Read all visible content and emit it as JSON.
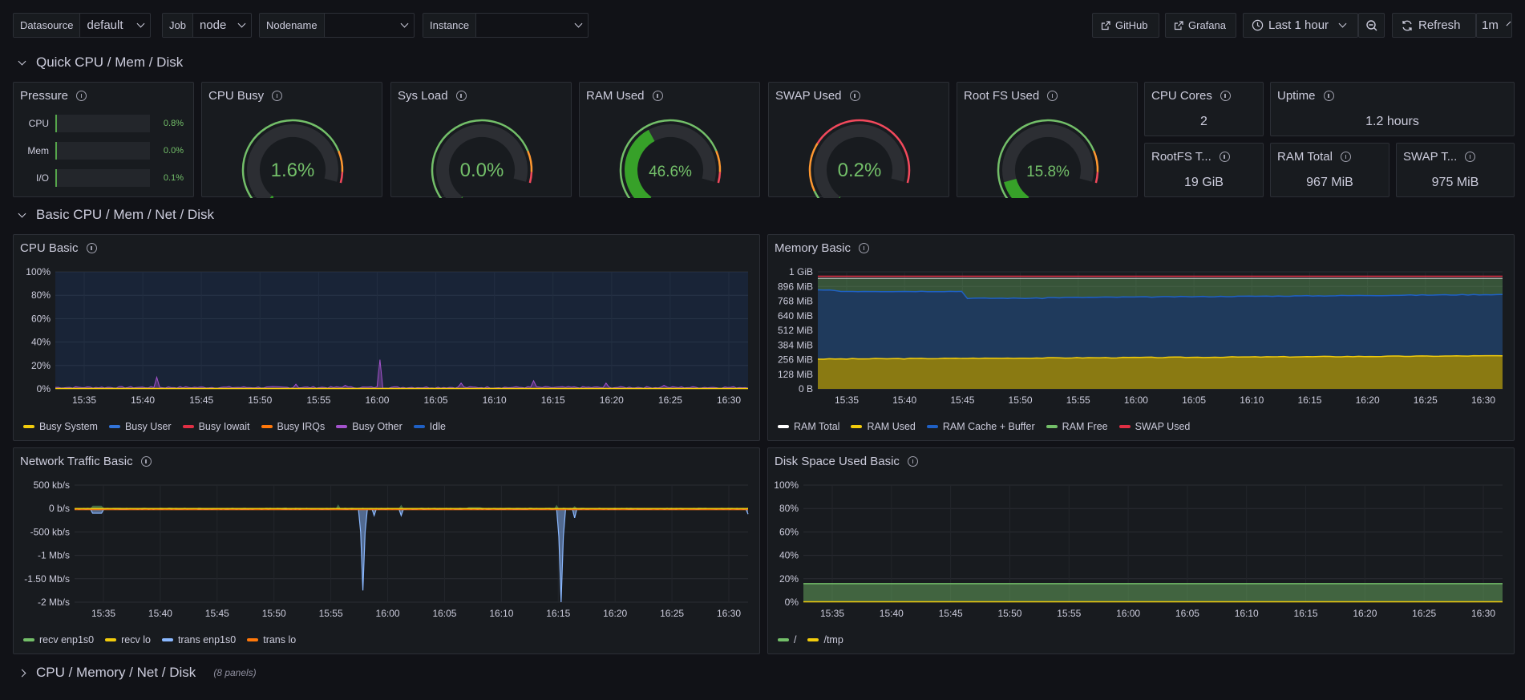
{
  "toolbar": {
    "vars": [
      {
        "label": "Datasource",
        "value": "default"
      },
      {
        "label": "Job",
        "value": "node"
      },
      {
        "label": "Nodename",
        "value": ""
      },
      {
        "label": "Instance",
        "value": ""
      }
    ],
    "github_label": "GitHub",
    "grafana_label": "Grafana",
    "time_range": "Last 1 hour",
    "refresh_label": "Refresh",
    "refresh_interval": "1m"
  },
  "rows": {
    "quick": "Quick CPU / Mem / Disk",
    "basic": "Basic CPU / Mem / Net / Disk",
    "cpu_mem_net_disk": "CPU / Memory / Net / Disk",
    "cpu_mem_net_disk_count": "(8 panels)"
  },
  "pressure": {
    "title": "Pressure",
    "items": [
      {
        "label": "CPU",
        "value": "0.8%",
        "fraction": 0.008
      },
      {
        "label": "Mem",
        "value": "0.0%",
        "fraction": 0.0
      },
      {
        "label": "I/O",
        "value": "0.1%",
        "fraction": 0.001
      }
    ]
  },
  "gauges": [
    {
      "title": "CPU Busy",
      "value": "1.6%",
      "pct": 1.6
    },
    {
      "title": "Sys Load",
      "value": "0.0%",
      "pct": 0.0
    },
    {
      "title": "RAM Used",
      "value": "46.6%",
      "pct": 46.6
    },
    {
      "title": "SWAP Used",
      "value": "0.2%",
      "pct": 0.2,
      "thresholds": "swap"
    },
    {
      "title": "Root FS Used",
      "value": "15.8%",
      "pct": 15.8
    }
  ],
  "stats": {
    "cpu_cores": {
      "title": "CPU Cores",
      "value": "2"
    },
    "uptime": {
      "title": "Uptime",
      "value": "1.2 hours"
    },
    "rootfs_total": {
      "title": "RootFS T...",
      "value": "19 GiB"
    },
    "ram_total": {
      "title": "RAM Total",
      "value": "967 MiB"
    },
    "swap_total": {
      "title": "SWAP T...",
      "value": "975 MiB"
    }
  },
  "time_ticks": [
    "15:35",
    "15:40",
    "15:45",
    "15:50",
    "15:55",
    "16:00",
    "16:05",
    "16:10",
    "16:15",
    "16:20",
    "16:25",
    "16:30"
  ],
  "cpu_basic": {
    "title": "CPU Basic",
    "y_ticks": [
      "100%",
      "80%",
      "60%",
      "40%",
      "20%",
      "0%"
    ],
    "legend": [
      {
        "name": "Busy System",
        "color": "#f2cc0c"
      },
      {
        "name": "Busy User",
        "color": "#3274d9"
      },
      {
        "name": "Busy Iowait",
        "color": "#e02f44"
      },
      {
        "name": "Busy IRQs",
        "color": "#ff780a"
      },
      {
        "name": "Busy Other",
        "color": "#a352cc"
      },
      {
        "name": "Idle",
        "color": "#1f60c4"
      }
    ]
  },
  "memory_basic": {
    "title": "Memory Basic",
    "y_ticks": [
      "1 GiB",
      "896 MiB",
      "768 MiB",
      "640 MiB",
      "512 MiB",
      "384 MiB",
      "256 MiB",
      "128 MiB",
      "0 B"
    ],
    "legend": [
      {
        "name": "RAM Total",
        "color": "#ffffff"
      },
      {
        "name": "RAM Used",
        "color": "#f2cc0c"
      },
      {
        "name": "RAM Cache + Buffer",
        "color": "#1f60c4"
      },
      {
        "name": "RAM Free",
        "color": "#73bf69"
      },
      {
        "name": "SWAP Used",
        "color": "#e02f44"
      }
    ]
  },
  "network_basic": {
    "title": "Network Traffic Basic",
    "y_ticks": [
      "500 kb/s",
      "0 b/s",
      "-500 kb/s",
      "-1 Mb/s",
      "-1.50 Mb/s",
      "-2 Mb/s"
    ],
    "legend": [
      {
        "name": "recv enp1s0",
        "color": "#73bf69"
      },
      {
        "name": "recv lo",
        "color": "#f2cc0c"
      },
      {
        "name": "trans enp1s0",
        "color": "#8ab8ff"
      },
      {
        "name": "trans lo",
        "color": "#ff780a"
      }
    ]
  },
  "disk_basic": {
    "title": "Disk Space Used Basic",
    "y_ticks": [
      "100%",
      "80%",
      "60%",
      "40%",
      "20%",
      "0%"
    ],
    "legend": [
      {
        "name": "/",
        "color": "#73bf69"
      },
      {
        "name": "/tmp",
        "color": "#f2cc0c"
      }
    ]
  },
  "chart_data": [
    {
      "type": "area",
      "title": "CPU Basic",
      "x": [
        "15:35",
        "15:40",
        "15:45",
        "15:50",
        "15:55",
        "16:00",
        "16:05",
        "16:10",
        "16:15",
        "16:20",
        "16:25",
        "16:30"
      ],
      "ylim": [
        0,
        100
      ],
      "series": [
        {
          "name": "Busy System",
          "values": [
            1,
            1,
            1,
            1,
            1,
            1,
            1,
            1,
            1,
            1,
            1,
            1
          ]
        },
        {
          "name": "Busy User",
          "values": [
            1,
            1,
            1,
            1,
            1,
            1,
            1,
            1,
            1,
            1,
            1,
            1
          ]
        },
        {
          "name": "Busy Other",
          "values": [
            1,
            1,
            8,
            1,
            1,
            25,
            1,
            1,
            7,
            1,
            1,
            1
          ]
        }
      ]
    },
    {
      "type": "area",
      "title": "Memory Basic",
      "x": [
        "15:35",
        "15:40",
        "15:45",
        "15:50",
        "15:55",
        "16:00",
        "16:05",
        "16:10",
        "16:15",
        "16:20",
        "16:25",
        "16:30"
      ],
      "ylim": [
        0,
        1024
      ],
      "series": [
        {
          "name": "RAM Total",
          "values": [
            967,
            967,
            967,
            967,
            967,
            967,
            967,
            967,
            967,
            967,
            967,
            967
          ]
        },
        {
          "name": "RAM Used",
          "values": [
            262,
            264,
            266,
            266,
            270,
            272,
            276,
            276,
            274,
            276,
            280,
            286
          ]
        },
        {
          "name": "RAM Cache + Buffer",
          "values": [
            870,
            860,
            800,
            790,
            800,
            810,
            815,
            805,
            800,
            810,
            820,
            830
          ]
        },
        {
          "name": "SWAP Used",
          "values": [
            2,
            2,
            2,
            2,
            2,
            2,
            2,
            2,
            2,
            2,
            2,
            2
          ]
        }
      ]
    },
    {
      "type": "area",
      "title": "Network Traffic Basic",
      "x": [
        "15:35",
        "15:40",
        "15:45",
        "15:50",
        "15:55",
        "16:00",
        "16:05",
        "16:10",
        "16:15",
        "16:20",
        "16:25",
        "16:30"
      ],
      "ylim": [
        -2200,
        600
      ],
      "series": [
        {
          "name": "recv enp1s0",
          "values": [
            30,
            0,
            0,
            0,
            0,
            80,
            40,
            20,
            10,
            10,
            60,
            0
          ]
        },
        {
          "name": "trans enp1s0",
          "values": [
            -120,
            0,
            0,
            0,
            0,
            0,
            -1750,
            -150,
            0,
            0,
            -2000,
            0
          ]
        }
      ]
    },
    {
      "type": "area",
      "title": "Disk Space Used Basic",
      "x": [
        "15:35",
        "15:40",
        "15:45",
        "15:50",
        "15:55",
        "16:00",
        "16:05",
        "16:10",
        "16:15",
        "16:20",
        "16:25",
        "16:30"
      ],
      "ylim": [
        0,
        100
      ],
      "series": [
        {
          "name": "/",
          "values": [
            15.8,
            15.8,
            15.8,
            15.8,
            15.8,
            15.8,
            15.8,
            15.8,
            15.8,
            15.8,
            15.8,
            15.8
          ]
        },
        {
          "name": "/tmp",
          "values": [
            0,
            0,
            0,
            0,
            0,
            0,
            0,
            0,
            0,
            0,
            0,
            0
          ]
        }
      ]
    }
  ]
}
